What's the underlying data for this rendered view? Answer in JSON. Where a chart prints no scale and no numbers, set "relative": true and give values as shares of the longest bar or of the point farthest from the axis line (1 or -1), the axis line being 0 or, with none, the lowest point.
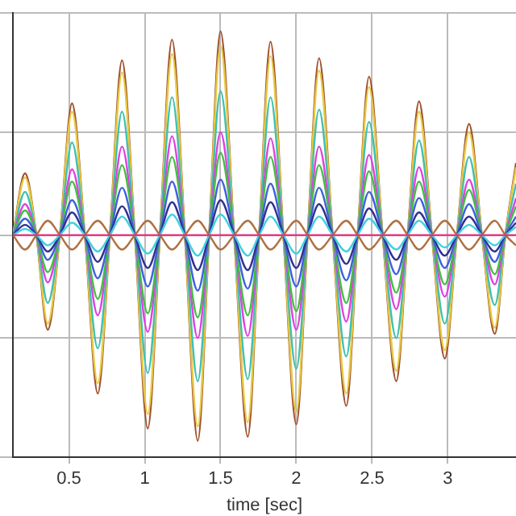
{
  "chart_data": {
    "type": "line",
    "xlabel": "time [sec]",
    "relative": true,
    "tick_labels": "x",
    "grid": true,
    "legend": false,
    "marker": "none",
    "line_style": "solid",
    "xlim": [
      0.13,
      3.45
    ],
    "xticks": [
      0.5,
      1,
      1.5,
      2,
      2.5,
      3
    ],
    "x": [
      0.13,
      0.21,
      0.285,
      0.36,
      0.44,
      0.52,
      0.605,
      0.69,
      0.77,
      0.85,
      0.935,
      1.02,
      1.1,
      1.18,
      1.265,
      1.35,
      1.425,
      1.5,
      1.59,
      1.68,
      1.755,
      1.83,
      1.915,
      2.0,
      2.075,
      2.15,
      2.24,
      2.33,
      2.405,
      2.48,
      2.57,
      2.66,
      2.735,
      2.81,
      2.895,
      2.98,
      3.06,
      3.14,
      3.225,
      3.31,
      3.38,
      3.45
    ],
    "series": [
      {
        "color": "#e03080",
        "values": [
          0,
          0,
          0,
          0,
          0,
          0,
          0,
          0,
          0,
          0,
          0,
          0,
          0,
          0,
          0,
          0,
          0,
          0,
          0,
          0,
          0,
          0,
          0,
          0,
          0,
          0,
          0,
          0,
          0,
          0,
          0,
          0,
          0,
          0,
          0,
          0,
          0,
          0,
          0,
          0,
          0,
          0
        ]
      },
      {
        "color": "#b07040",
        "values": [
          0,
          -0.07,
          0,
          0.07,
          0,
          -0.07,
          0,
          0.07,
          0,
          -0.07,
          0,
          0.07,
          0,
          -0.07,
          0,
          0.07,
          0,
          -0.07,
          0,
          0.07,
          0,
          -0.07,
          0,
          0.07,
          0,
          -0.07,
          0,
          0.07,
          0,
          -0.07,
          0,
          0.07,
          0,
          -0.07,
          0,
          0.07,
          0,
          -0.07,
          0,
          0.07,
          0,
          -0.05
        ]
      },
      {
        "color": "#40d0e0",
        "values": [
          0,
          0.03,
          0,
          -0.05,
          0,
          0.06,
          0,
          -0.08,
          0,
          0.09,
          0,
          -0.09,
          0,
          0.1,
          0,
          -0.1,
          0,
          0.1,
          0,
          -0.1,
          0,
          0.09,
          0,
          -0.09,
          0,
          0.09,
          0,
          -0.08,
          0,
          0.08,
          0,
          -0.07,
          0,
          0.07,
          0,
          -0.06,
          0,
          0.05,
          0,
          -0.05,
          0,
          0.04
        ]
      },
      {
        "color": "#303090",
        "values": [
          0,
          0.05,
          0,
          -0.08,
          0,
          0.11,
          0,
          -0.13,
          0,
          0.14,
          0,
          -0.16,
          0,
          0.16,
          0,
          -0.17,
          0,
          0.17,
          0,
          -0.17,
          0,
          0.16,
          0,
          -0.16,
          0,
          0.15,
          0,
          -0.14,
          0,
          0.13,
          0,
          -0.12,
          0,
          0.11,
          0,
          -0.1,
          0,
          0.09,
          0,
          -0.08,
          0,
          0.06
        ]
      },
      {
        "color": "#4060e0",
        "values": [
          0,
          0.08,
          0,
          -0.12,
          0,
          0.17,
          0,
          -0.21,
          0,
          0.23,
          0,
          -0.25,
          0,
          0.26,
          0,
          -0.27,
          0,
          0.27,
          0,
          -0.26,
          0,
          0.25,
          0,
          -0.25,
          0,
          0.23,
          0,
          -0.22,
          0,
          0.21,
          0,
          -0.19,
          0,
          0.18,
          0,
          -0.16,
          0,
          0.15,
          0,
          -0.13,
          0,
          0.09
        ]
      },
      {
        "color": "#40c040",
        "values": [
          0,
          0.12,
          0,
          -0.18,
          0,
          0.26,
          0,
          -0.31,
          0,
          0.34,
          0,
          -0.38,
          0,
          0.38,
          0,
          -0.4,
          0,
          0.4,
          0,
          -0.39,
          0,
          0.38,
          0,
          -0.37,
          0,
          0.34,
          0,
          -0.33,
          0,
          0.31,
          0,
          -0.28,
          0,
          0.26,
          0,
          -0.24,
          0,
          0.22,
          0,
          -0.19,
          0,
          0.14
        ]
      },
      {
        "color": "#e040e0",
        "values": [
          0,
          0.15,
          0,
          -0.23,
          0,
          0.32,
          0,
          -0.39,
          0,
          0.43,
          0,
          -0.47,
          0,
          0.48,
          0,
          -0.5,
          0,
          0.5,
          0,
          -0.49,
          0,
          0.47,
          0,
          -0.46,
          0,
          0.43,
          0,
          -0.42,
          0,
          0.39,
          0,
          -0.36,
          0,
          0.33,
          0,
          -0.3,
          0,
          0.27,
          0,
          -0.24,
          0,
          0.18
        ]
      },
      {
        "color": "#40c0b0",
        "values": [
          0,
          0.21,
          0,
          -0.33,
          0,
          0.45,
          0,
          -0.55,
          0,
          0.6,
          0,
          -0.67,
          0,
          0.67,
          0,
          -0.71,
          0,
          0.7,
          0,
          -0.7,
          0,
          0.67,
          0,
          -0.65,
          0,
          0.61,
          0,
          -0.59,
          0,
          0.55,
          0,
          -0.5,
          0,
          0.46,
          0,
          -0.43,
          0,
          0.38,
          0,
          -0.34,
          0,
          0.25
        ]
      },
      {
        "color": "#e8c840",
        "values": [
          0,
          0.28,
          0,
          -0.43,
          0,
          0.6,
          0,
          -0.72,
          0,
          0.79,
          0,
          -0.87,
          0,
          0.88,
          0,
          -0.93,
          0,
          0.92,
          0,
          -0.91,
          0,
          0.87,
          0,
          -0.86,
          0,
          0.8,
          0,
          -0.77,
          0,
          0.72,
          0,
          -0.66,
          0,
          0.6,
          0,
          -0.56,
          0,
          0.5,
          0,
          -0.45,
          0,
          0.33
        ]
      },
      {
        "color": "#a0522d",
        "values": [
          0,
          0.3,
          0,
          -0.46,
          0,
          0.64,
          0,
          -0.77,
          0,
          0.85,
          0,
          -0.94,
          0,
          0.95,
          0,
          -1,
          0,
          0.99,
          0,
          -0.98,
          0,
          0.94,
          0,
          -0.92,
          0,
          0.86,
          0,
          -0.83,
          0,
          0.77,
          0,
          -0.71,
          0,
          0.65,
          0,
          -0.6,
          0,
          0.54,
          0,
          -0.48,
          0,
          0.35
        ]
      }
    ]
  }
}
